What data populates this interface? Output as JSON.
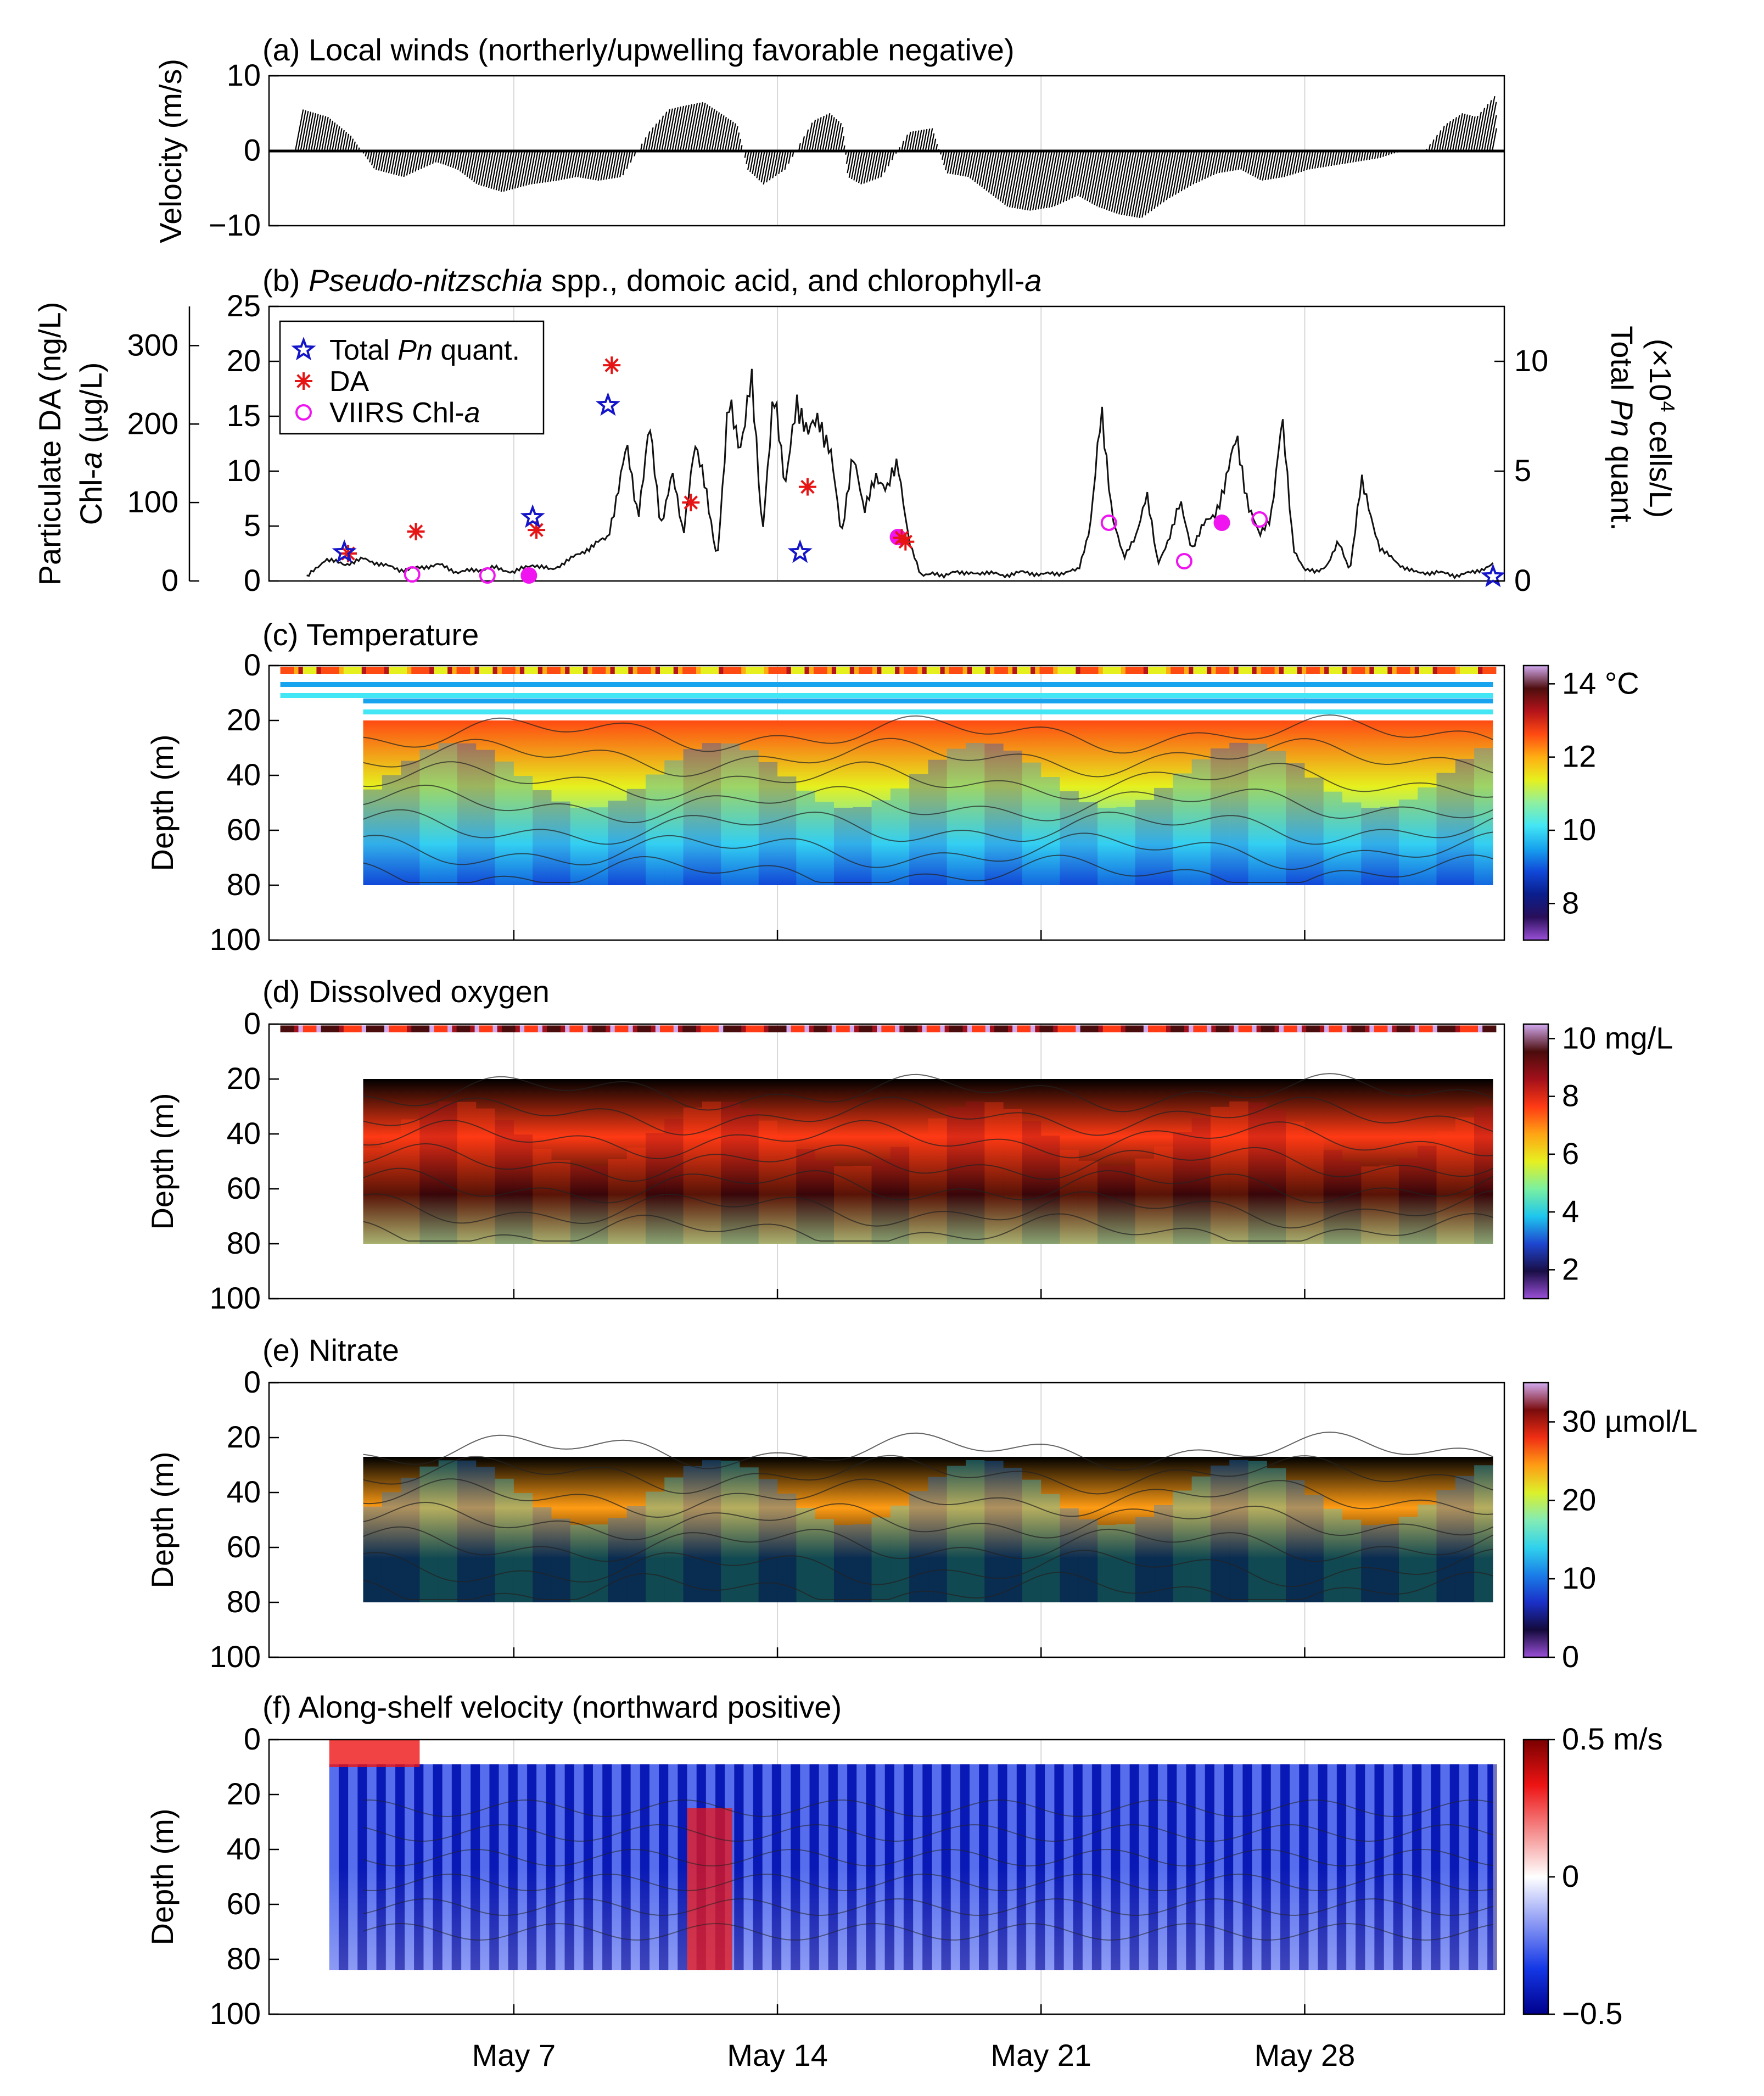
{
  "colors": {
    "temp_scale": [
      "#9b50d8",
      "#2a0f5a",
      "#0a1e8c",
      "#1048d8",
      "#17a3ee",
      "#43e6f4",
      "#8ef0a0",
      "#e6f01e",
      "#ffae12",
      "#ff4a12",
      "#b4141a",
      "#4e0e0e",
      "#d2aaf0"
    ],
    "oxygen_scale": [
      "#9b50d8",
      "#1a0e46",
      "#1e46d0",
      "#1ec6ee",
      "#7af0a0",
      "#e6f020",
      "#ffa414",
      "#ff3a14",
      "#a2101a",
      "#4a0c0c",
      "#d2aaf0"
    ],
    "nitrate_scale": [
      "#9b50d8",
      "#140a3c",
      "#1a30c8",
      "#1a7ee8",
      "#30d2ec",
      "#84ecb4",
      "#dcf02a",
      "#ff9c14",
      "#f02e14",
      "#7a0c0c",
      "#d2aaf0"
    ],
    "velocity_scale": [
      "#00008c",
      "#1438e6",
      "#8c9af4",
      "#ffffff",
      "#f58c8c",
      "#ee1414",
      "#7a0000"
    ],
    "pn_series": "#1414c8",
    "da_series": "#e61414",
    "viirs_series": "#f014f0"
  },
  "x_axis": {
    "tick_labels": [
      "May 7",
      "May 14",
      "May 21",
      "May 28"
    ]
  },
  "chart_data": [
    {
      "id": "a",
      "type": "line",
      "title": "(a) Local winds (northerly/upwelling favorable negative)",
      "ylabel": "Velocity (m/s)",
      "yticks": [
        "10",
        "0",
        "−10"
      ],
      "ylim": [
        -10,
        10
      ],
      "xlim_days": [
        1,
        33
      ],
      "series": [
        {
          "name": "wind_v",
          "x": [
            1.2,
            1.9,
            2.6,
            3.4,
            4.2,
            5.0,
            5.6,
            6.2,
            6.9,
            7.6,
            8.3,
            8.8,
            9.4,
            10.0,
            10.5,
            10.9,
            11.3,
            11.8,
            12.3,
            12.8,
            13.3,
            13.8,
            14.3,
            14.8,
            15.2,
            15.6,
            16.0,
            16.4,
            16.9,
            17.4,
            18.0,
            18.6,
            19.2,
            19.8,
            20.4,
            21.0,
            21.6,
            22.2,
            22.8,
            23.4,
            24.0,
            24.6,
            25.2,
            25.8,
            26.4,
            27.0,
            27.6,
            28.2,
            28.8,
            29.4,
            30.0,
            30.6,
            31.2,
            31.6,
            32.0,
            32.4,
            32.8,
            33.0
          ],
          "y": [
            5.5,
            4.5,
            2.0,
            -2.5,
            -3.5,
            -1.5,
            -2.5,
            -4.5,
            -5.5,
            -4.5,
            -4.0,
            -3.5,
            -4.0,
            -3.5,
            2.5,
            5.5,
            6.0,
            6.5,
            5.0,
            3.5,
            -2.5,
            -4.5,
            -2.5,
            4.0,
            5.0,
            3.5,
            -3.5,
            -4.5,
            -3.5,
            2.5,
            3.0,
            -3.0,
            -3.5,
            -5.5,
            -7.5,
            -8.0,
            -7.5,
            -6.0,
            -7.5,
            -8.5,
            -9.0,
            -6.5,
            -4.5,
            -3.0,
            -2.5,
            -4.0,
            -3.5,
            -2.5,
            -2.0,
            -1.5,
            -1.0,
            0.0,
            0.0,
            3.5,
            5.0,
            4.5,
            7.5,
            2.5
          ]
        }
      ]
    },
    {
      "id": "b",
      "type": "line",
      "title": "(b) Pseudo-nitzschia spp., domoic acid, and chlorophyll-a",
      "title_parts": [
        "(b) ",
        "Pseudo-nitzschia",
        " spp., domoic acid, and chlorophyll-",
        "a"
      ],
      "ylabel_left_1": "Particulate DA (ng/L)",
      "ylabel_left_2_parts": [
        "Chl-",
        "a",
        " (µg/L)"
      ],
      "ylabel_right_parts": [
        "Total ",
        "Pn",
        " quant.",
        "(×10",
        "4",
        " cells/L)"
      ],
      "chl_yticks": [
        "25",
        "20",
        "15",
        "10",
        "5",
        "0"
      ],
      "chl_ylim": [
        0,
        25
      ],
      "da_yticks": [
        "300",
        "200",
        "100",
        "0"
      ],
      "da_ylim": [
        0,
        350
      ],
      "pn_yticks": [
        "10",
        "5",
        "0"
      ],
      "pn_ylim": [
        0,
        12.5
      ],
      "legend": [
        {
          "label_parts": [
            "Total ",
            "Pn",
            " quant."
          ],
          "marker": "star"
        },
        {
          "label_parts": [
            "DA",
            "",
            ""
          ],
          "marker": "asterisk"
        },
        {
          "label_parts": [
            "VIIRS Chl-",
            "a",
            ""
          ],
          "marker": "circle"
        }
      ],
      "chl_series": {
        "x": [
          1.5,
          2.0,
          2.5,
          3.0,
          3.5,
          4.0,
          4.5,
          5.0,
          5.5,
          6.0,
          6.5,
          7.0,
          7.5,
          8.0,
          8.5,
          9.0,
          9.5,
          10.0,
          10.3,
          10.6,
          10.9,
          11.2,
          11.5,
          11.8,
          12.1,
          12.4,
          12.7,
          13.0,
          13.3,
          13.6,
          13.9,
          14.2,
          14.5,
          14.8,
          15.1,
          15.4,
          15.7,
          16.0,
          16.3,
          16.6,
          16.9,
          17.2,
          17.5,
          17.8,
          18.1,
          18.4,
          18.7,
          19.0,
          19.5,
          20.0,
          20.5,
          21.0,
          21.5,
          22.0,
          22.3,
          22.6,
          22.9,
          23.2,
          23.5,
          23.8,
          24.1,
          24.4,
          24.7,
          25.0,
          25.3,
          25.6,
          25.9,
          26.2,
          26.5,
          26.8,
          27.1,
          27.4,
          27.7,
          28.0,
          28.3,
          28.6,
          28.9,
          29.2,
          29.5,
          30.0,
          30.5,
          31.0,
          31.5,
          32.0,
          32.5,
          33.0
        ],
        "y": [
          0.3,
          2.0,
          1.5,
          2.0,
          1.5,
          1.0,
          1.2,
          1.5,
          0.8,
          1.0,
          1.2,
          0.8,
          1.5,
          1.0,
          2.0,
          3.0,
          4.0,
          12.0,
          6.0,
          14.0,
          5.0,
          10.0,
          4.0,
          13.0,
          8.0,
          2.0,
          16.0,
          12.0,
          19.0,
          4.0,
          18.0,
          8.0,
          17.0,
          13.0,
          15.0,
          12.0,
          4.0,
          12.0,
          6.0,
          10.0,
          8.0,
          11.0,
          3.5,
          0.5,
          0.8,
          0.3,
          1.0,
          0.6,
          0.8,
          0.5,
          0.8,
          0.6,
          0.7,
          1.0,
          5.0,
          15.0,
          6.0,
          2.0,
          4.0,
          8.0,
          1.5,
          4.0,
          7.0,
          3.0,
          5.0,
          6.0,
          9.0,
          13.0,
          7.0,
          4.0,
          6.0,
          14.5,
          3.0,
          1.0,
          0.8,
          1.5,
          3.5,
          1.0,
          9.0,
          3.0,
          1.5,
          0.7,
          0.8,
          0.5,
          0.8,
          1.5
        ]
      },
      "pn_points": {
        "x": [
          2.5,
          7.5,
          9.5,
          14.6,
          33.0
        ],
        "y": [
          1.3,
          2.9,
          8.0,
          1.3,
          0.2
        ]
      },
      "da_points": {
        "x": [
          2.6,
          4.4,
          7.6,
          9.6,
          11.7,
          14.8,
          17.3,
          17.4
        ],
        "y": [
          35,
          63,
          65,
          275,
          100,
          120,
          55,
          50
        ]
      },
      "viirs_points": {
        "x": [
          4.3,
          6.3,
          7.4,
          17.2,
          22.8,
          24.8,
          25.8,
          26.8
        ],
        "y": [
          0.6,
          0.5,
          0.5,
          4.0,
          5.3,
          1.8,
          5.3,
          5.6
        ],
        "filled": [
          false,
          false,
          true,
          true,
          false,
          false,
          true,
          false
        ]
      }
    },
    {
      "id": "c",
      "type": "heatmap",
      "title": "(c) Temperature",
      "ylabel": "Depth (m)",
      "yticks": [
        "0",
        "20",
        "40",
        "60",
        "80",
        "100"
      ],
      "ylim": [
        0,
        100
      ],
      "colorbar_ticks": [
        "14 °C",
        "12",
        "10",
        "8"
      ],
      "colorbar_values": [
        14,
        12,
        10,
        8
      ],
      "clim": [
        7,
        14.5
      ]
    },
    {
      "id": "d",
      "type": "heatmap",
      "title": "(d) Dissolved oxygen",
      "ylabel": "Depth (m)",
      "yticks": [
        "0",
        "20",
        "40",
        "60",
        "80",
        "100"
      ],
      "ylim": [
        0,
        100
      ],
      "colorbar_ticks": [
        "10 mg/L",
        "8",
        "6",
        "4",
        "2"
      ],
      "colorbar_values": [
        10,
        8,
        6,
        4,
        2
      ],
      "clim": [
        1,
        10.5
      ]
    },
    {
      "id": "e",
      "type": "heatmap",
      "title": "(e) Nitrate",
      "ylabel": "Depth (m)",
      "yticks": [
        "0",
        "20",
        "40",
        "60",
        "80",
        "100"
      ],
      "ylim": [
        0,
        100
      ],
      "colorbar_ticks": [
        "30 µmol/L",
        "20",
        "10",
        "0"
      ],
      "colorbar_values": [
        30,
        20,
        10,
        0
      ],
      "clim": [
        0,
        35
      ]
    },
    {
      "id": "f",
      "type": "heatmap",
      "title": "(f) Along-shelf velocity (northward positive)",
      "ylabel": "Depth (m)",
      "yticks": [
        "0",
        "20",
        "40",
        "60",
        "80",
        "100"
      ],
      "ylim": [
        0,
        100
      ],
      "colorbar_ticks": [
        "0.5 m/s",
        "0",
        "−0.5"
      ],
      "colorbar_values": [
        0.5,
        0,
        -0.5
      ],
      "clim": [
        -0.5,
        0.5
      ]
    }
  ]
}
